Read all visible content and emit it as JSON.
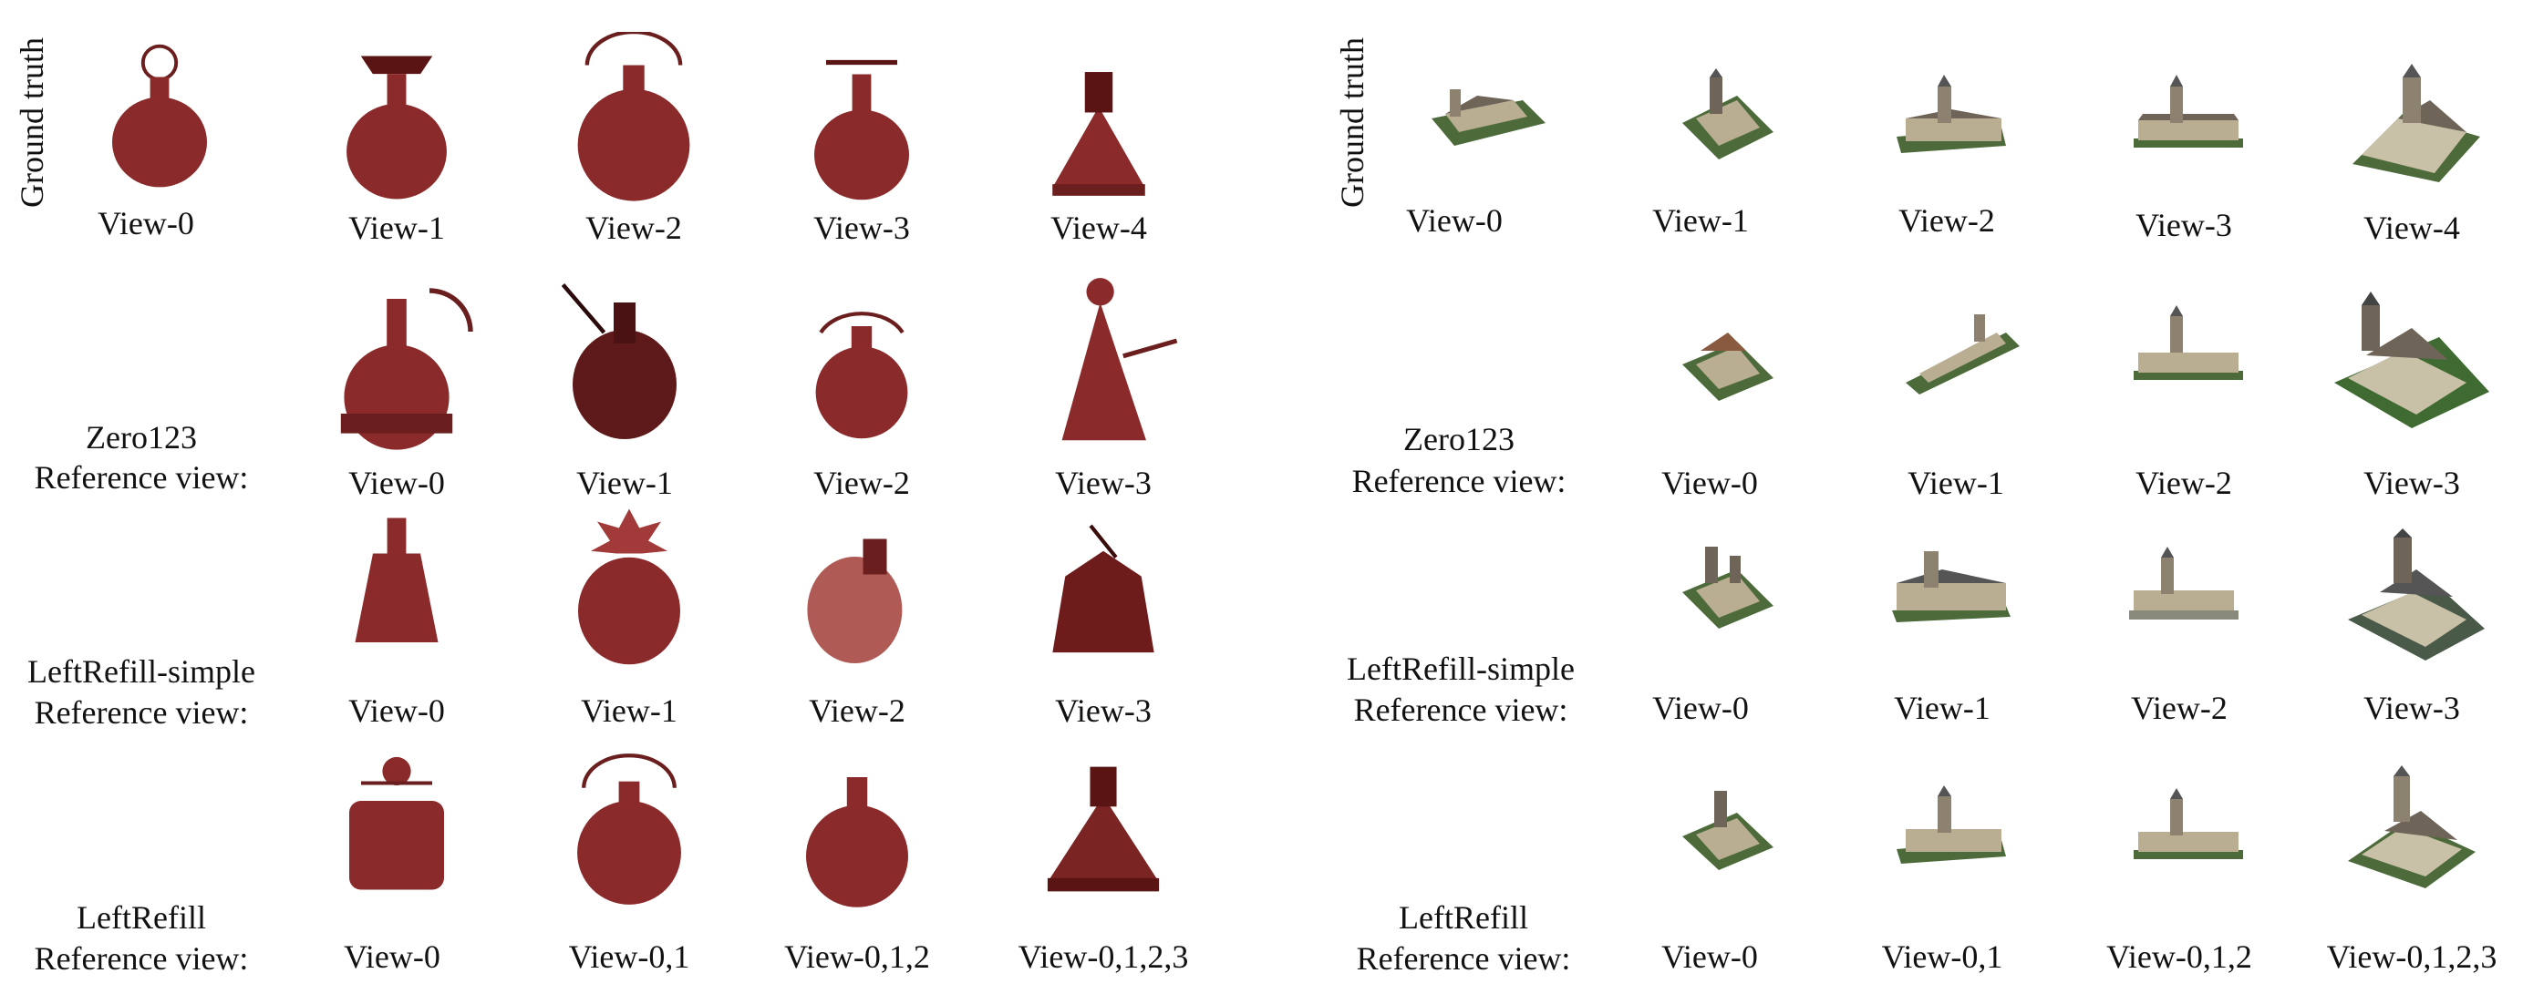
{
  "panels": [
    {
      "side_label": "Ground truth",
      "gt_views": [
        "View-0",
        "View-1",
        "View-2",
        "View-3",
        "View-4"
      ],
      "rows": [
        {
          "method": "Zero123",
          "ref": "Reference view:",
          "views": [
            "View-0",
            "View-1",
            "View-2",
            "View-3"
          ]
        },
        {
          "method": "LeftRefill-simple",
          "ref": "Reference view:",
          "views": [
            "View-0",
            "View-1",
            "View-2",
            "View-3"
          ]
        },
        {
          "method": "LeftRefill",
          "ref": "Reference view:",
          "views": [
            "View-0",
            "View-0,1",
            "View-0,1,2",
            "View-0,1,2,3"
          ]
        }
      ],
      "object_color": "#8b2a2a"
    },
    {
      "side_label": "Ground truth",
      "gt_views": [
        "View-0",
        "View-1",
        "View-2",
        "View-3",
        "View-4"
      ],
      "rows": [
        {
          "method": "Zero123",
          "ref": "Reference view:",
          "views": [
            "View-0",
            "View-1",
            "View-2",
            "View-3"
          ]
        },
        {
          "method": "LeftRefill-simple",
          "ref": "Reference view:",
          "views": [
            "View-0",
            "View-1",
            "View-2",
            "View-3"
          ]
        },
        {
          "method": "LeftRefill",
          "ref": "Reference view:",
          "views": [
            "View-0",
            "View-0,1",
            "View-0,1,2",
            "View-0,1,2,3"
          ]
        }
      ],
      "object_color": "#b9ad92"
    }
  ]
}
